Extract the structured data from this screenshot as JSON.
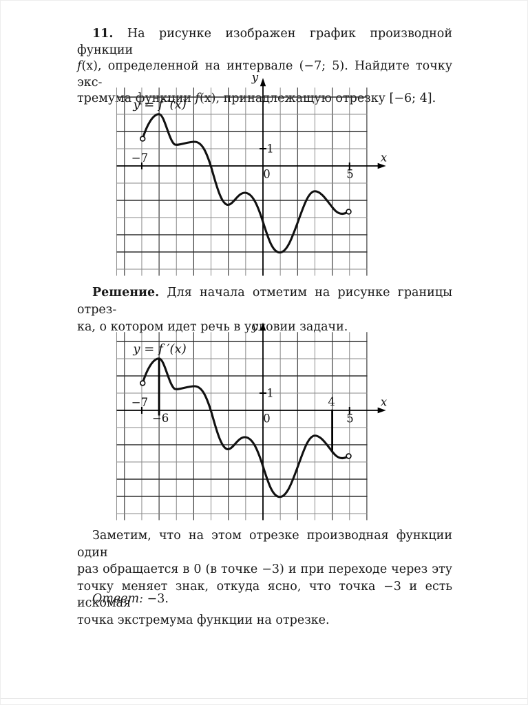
{
  "page": {
    "background": "#ffffff",
    "text_color": "#1a1a1a"
  },
  "problem": {
    "number": "11.",
    "line1_rest": " На рисунке изображен график производной функции",
    "line2_f": "f",
    "line2_rest": "(x), определенной на интервале (−7; 5). Найдите точку экс-",
    "line3_pre": "тремума функции ",
    "line3_f": "f",
    "line3_rest": "(x), принадлежащую отрезку [−6; 4]."
  },
  "solution": {
    "heading": "Решение.",
    "line1_rest": " Для начала отметим на рисунке границы отрез-",
    "line2": "ка, о котором идет речь в условии задачи."
  },
  "conclusion": {
    "line1": "Заметим, что на этом отрезке производная функции один",
    "line2": "раз обращается в 0 (в точке −3) и при переходе через эту",
    "line3": "точку меняет знак, откуда ясно, что точка −3 и есть искомая",
    "line4": "точка экстремума функции на отрезке."
  },
  "answer": {
    "label": "Ответ:",
    "value": " −3."
  },
  "chart_data": [
    {
      "type": "line",
      "name": "derivative-graph-original",
      "equation_label": "y = f ′(x)",
      "xlabel": "x",
      "ylabel": "y",
      "x_range": [
        -8.45,
        6.03
      ],
      "y_range": [
        -6.38,
        4.55
      ],
      "x_gridlines": [
        -8,
        -7,
        -6,
        -5,
        -4,
        -3,
        -2,
        -1,
        1,
        2,
        3,
        4,
        5,
        6
      ],
      "y_gridlines": [
        4,
        3,
        2,
        1,
        -1,
        -2,
        -3,
        -4,
        -5,
        -6
      ],
      "x_axis_ticks": [
        -7,
        5
      ],
      "y_axis_ticks": [
        1
      ],
      "curve": {
        "color": "#111111",
        "domain_interval": "(−7; 5)",
        "open_endpoints": [
          [
            -6.95,
            1.58
          ],
          [
            4.95,
            -2.66
          ]
        ],
        "extrema": [
          [
            -6,
            3
          ],
          [
            -4.95,
            1.18
          ],
          [
            -3.95,
            1.4
          ],
          [
            -2,
            -2.25
          ],
          [
            -1,
            -1.55
          ],
          [
            1,
            -5
          ],
          [
            3,
            -1.45
          ]
        ],
        "zero_crossings": [
          -3
        ],
        "path": [
          [
            "M",
            -6.95,
            1.58
          ],
          [
            "C",
            -6.7,
            2.4,
            -6.35,
            3.01,
            -6.0,
            3.01
          ],
          [
            "C",
            -5.7,
            3.01,
            -5.45,
            1.55,
            -5.12,
            1.26
          ],
          [
            "C",
            -4.95,
            1.14,
            -4.4,
            1.4,
            -3.95,
            1.4
          ],
          [
            "C",
            -3.55,
            1.4,
            -3.3,
            0.9,
            -3.02,
            0.02
          ],
          [
            "C",
            -2.78,
            -0.75,
            -2.45,
            -2.26,
            -2.02,
            -2.26
          ],
          [
            "C",
            -1.72,
            -2.26,
            -1.45,
            -1.56,
            -1.05,
            -1.56
          ],
          [
            "C",
            -0.6,
            -1.56,
            -0.3,
            -2.3,
            0.0,
            -3.25
          ],
          [
            "C",
            0.3,
            -4.2,
            0.55,
            -5.03,
            0.97,
            -5.03
          ],
          [
            "C",
            1.4,
            -5.03,
            1.7,
            -4.1,
            2.0,
            -3.3
          ],
          [
            "C",
            2.3,
            -2.5,
            2.6,
            -1.47,
            3.0,
            -1.47
          ],
          [
            "C",
            3.45,
            -1.47,
            3.85,
            -2.3,
            4.2,
            -2.62
          ],
          [
            "C",
            4.45,
            -2.84,
            4.7,
            -2.8,
            4.9,
            -2.68
          ]
        ]
      },
      "segment_markers": [],
      "labels": [
        {
          "text": "y = f ′(x)",
          "x": -7.5,
          "y": 3.56,
          "anchor": "start",
          "italic": true,
          "size": 18
        },
        {
          "text": "−7",
          "x": -7.12,
          "y": 0.46
        },
        {
          "text": "1",
          "x": 0.42,
          "y": 1.0
        },
        {
          "text": "0",
          "x": 0.22,
          "y": -0.48
        },
        {
          "text": "5",
          "x": 5.03,
          "y": -0.48
        },
        {
          "text": "x",
          "x": 6.98,
          "y": 0.48,
          "italic": true
        },
        {
          "text": "y",
          "x": -0.46,
          "y": 5.14,
          "italic": true
        }
      ]
    },
    {
      "type": "line",
      "name": "derivative-graph-with-segment-bounds",
      "equation_label": "y = f ′(x)",
      "xlabel": "x",
      "ylabel": "y",
      "x_range": [
        -8.45,
        6.03
      ],
      "y_range": [
        -6.38,
        4.55
      ],
      "x_gridlines": [
        -8,
        -7,
        -6,
        -5,
        -4,
        -3,
        -2,
        -1,
        1,
        2,
        3,
        4,
        5,
        6
      ],
      "y_gridlines": [
        4,
        3,
        2,
        1,
        -1,
        -2,
        -3,
        -4,
        -5,
        -6
      ],
      "x_axis_ticks": [
        -7,
        5
      ],
      "y_axis_ticks": [
        1
      ],
      "curve": {
        "color": "#111111",
        "domain_interval": "(−7; 5)",
        "open_endpoints": [
          [
            -6.95,
            1.58
          ],
          [
            4.95,
            -2.66
          ]
        ],
        "extrema": [
          [
            -6,
            3
          ],
          [
            -4.95,
            1.18
          ],
          [
            -3.95,
            1.4
          ],
          [
            -2,
            -2.25
          ],
          [
            -1,
            -1.55
          ],
          [
            1,
            -5
          ],
          [
            3,
            -1.45
          ]
        ],
        "zero_crossings": [
          -3
        ],
        "path": [
          [
            "M",
            -6.95,
            1.58
          ],
          [
            "C",
            -6.7,
            2.4,
            -6.35,
            3.01,
            -6.0,
            3.01
          ],
          [
            "C",
            -5.7,
            3.01,
            -5.45,
            1.55,
            -5.12,
            1.26
          ],
          [
            "C",
            -4.95,
            1.14,
            -4.4,
            1.4,
            -3.95,
            1.4
          ],
          [
            "C",
            -3.55,
            1.4,
            -3.3,
            0.9,
            -3.02,
            0.02
          ],
          [
            "C",
            -2.78,
            -0.75,
            -2.45,
            -2.26,
            -2.02,
            -2.26
          ],
          [
            "C",
            -1.72,
            -2.26,
            -1.45,
            -1.56,
            -1.05,
            -1.56
          ],
          [
            "C",
            -0.6,
            -1.56,
            -0.3,
            -2.3,
            0.0,
            -3.25
          ],
          [
            "C",
            0.3,
            -4.2,
            0.55,
            -5.03,
            0.97,
            -5.03
          ],
          [
            "C",
            1.4,
            -5.03,
            1.7,
            -4.1,
            2.0,
            -3.3
          ],
          [
            "C",
            2.3,
            -2.5,
            2.6,
            -1.47,
            3.0,
            -1.47
          ],
          [
            "C",
            3.45,
            -1.47,
            3.85,
            -2.3,
            4.2,
            -2.62
          ],
          [
            "C",
            4.45,
            -2.84,
            4.7,
            -2.8,
            4.9,
            -2.68
          ]
        ]
      },
      "segment_markers": [
        {
          "x": -6.0,
          "y_from": -0.3,
          "y_to": 3.0
        },
        {
          "x": 4.0,
          "y_from": 0.05,
          "y_to": -2.45
        }
      ],
      "labels": [
        {
          "text": "y = f ′(x)",
          "x": -7.5,
          "y": 3.56,
          "anchor": "start",
          "italic": true,
          "size": 18
        },
        {
          "text": "−7",
          "x": -7.12,
          "y": 0.46
        },
        {
          "text": "−6",
          "x": -5.92,
          "y": -0.46
        },
        {
          "text": "1",
          "x": 0.42,
          "y": 1.0
        },
        {
          "text": "0",
          "x": 0.22,
          "y": -0.48
        },
        {
          "text": "4",
          "x": 3.96,
          "y": 0.5
        },
        {
          "text": "5",
          "x": 5.03,
          "y": -0.48
        },
        {
          "text": "x",
          "x": 6.98,
          "y": 0.48,
          "italic": true
        },
        {
          "text": "y",
          "x": -0.46,
          "y": 4.88,
          "italic": true
        }
      ]
    }
  ]
}
